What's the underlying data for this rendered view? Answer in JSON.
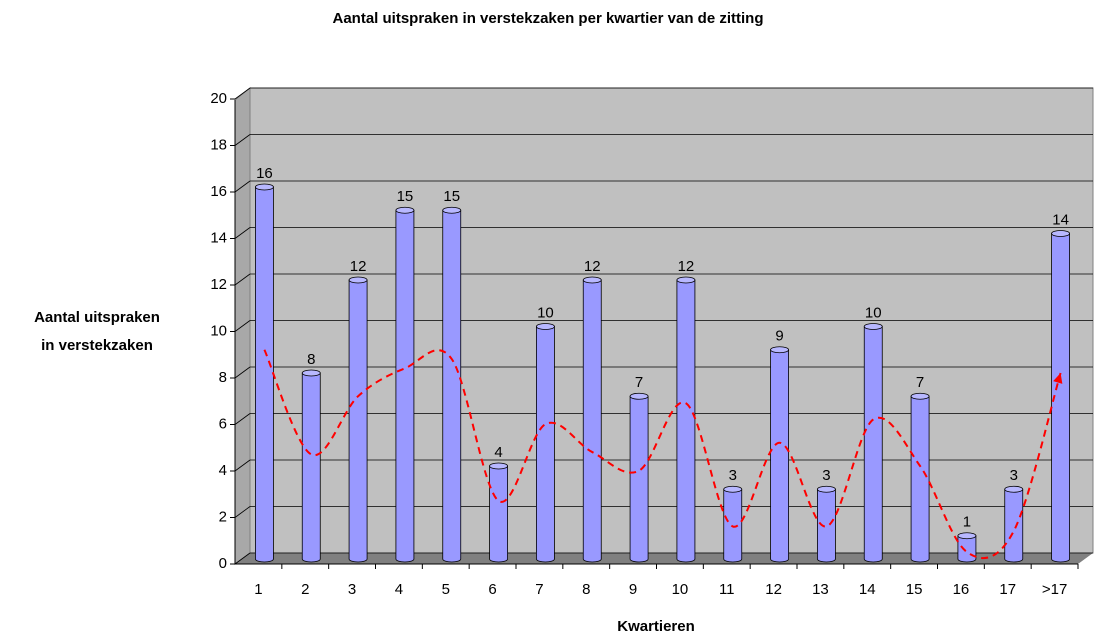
{
  "chart_data": {
    "type": "bar",
    "title": "Aantal uitspraken in verstekzaken per kwartier van de zitting",
    "y_label": [
      "Aantal uitspraken",
      "in verstekzaken"
    ],
    "x_label": "Kwartieren",
    "categories": [
      "1",
      "2",
      "3",
      "4",
      "5",
      "6",
      "7",
      "8",
      "9",
      "10",
      "11",
      "12",
      "13",
      "14",
      "15",
      "16",
      "17",
      ">17"
    ],
    "values": [
      16,
      8,
      12,
      15,
      15,
      4,
      10,
      12,
      7,
      12,
      3,
      9,
      3,
      10,
      7,
      1,
      3,
      14
    ],
    "color": "#9999ff",
    "trend": {
      "color": "#ff0000",
      "values": [
        9,
        4.5,
        7,
        8.2,
        8.6,
        2.5,
        5.8,
        4.6,
        3.8,
        6.7,
        1.4,
        5,
        1.4,
        6,
        4,
        0.3,
        1.2,
        8
      ]
    },
    "ylim": [
      0,
      20
    ],
    "yticks": [
      0,
      2,
      4,
      6,
      8,
      10,
      12,
      14,
      16,
      18,
      20
    ],
    "grid": true
  }
}
